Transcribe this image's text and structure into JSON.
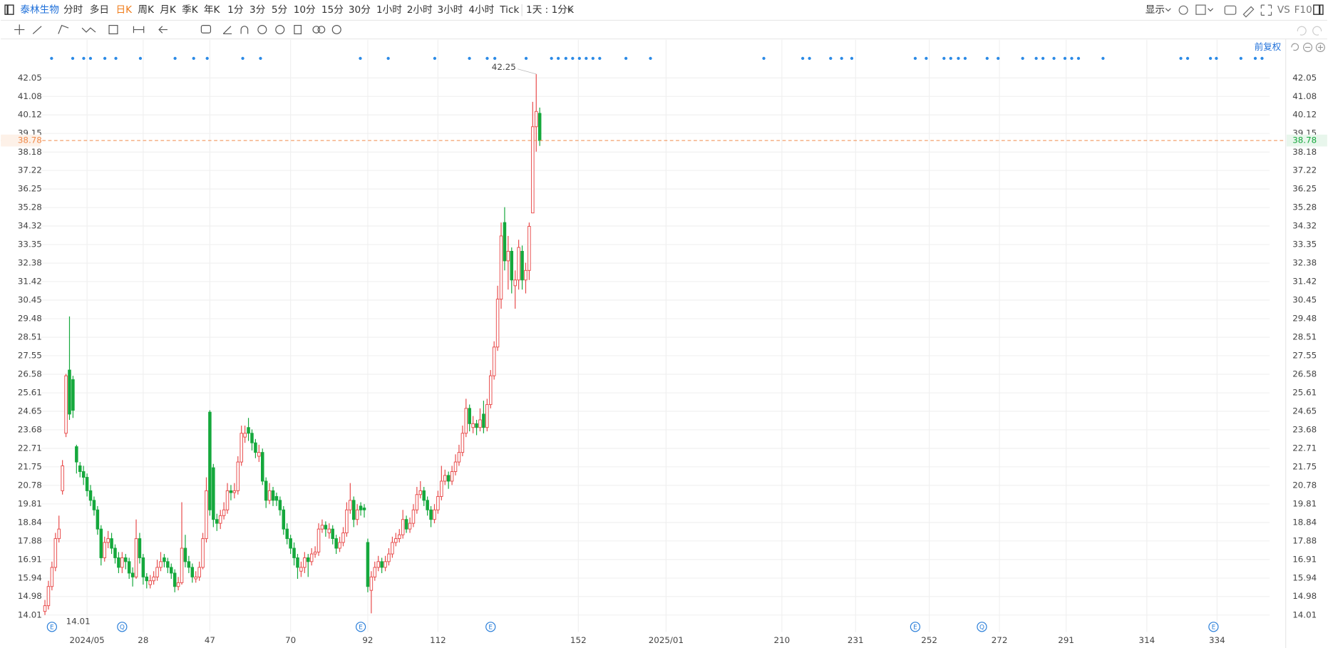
{
  "toolbar": {
    "stock": "泰林生物",
    "periods": [
      "分时",
      "多日",
      "日K",
      "周K",
      "月K",
      "季K",
      "年K",
      "1分",
      "3分",
      "5分",
      "10分",
      "15分",
      "30分",
      "1小时",
      "2小时",
      "3小时",
      "4小时",
      "Tick"
    ],
    "active_period": 2,
    "interval": "1天 : 1分K",
    "display": "显示",
    "vs": "VS",
    "f10": "F10"
  },
  "chart_data": {
    "type": "candlestick",
    "adjust": "前复权",
    "up_color": "#e84a4a",
    "down_color": "#15a83c",
    "last_color": "#f08a4b",
    "xlim": [
      -1,
      349
    ],
    "ylim": [
      13.13,
      44.04
    ],
    "xticks": [
      {
        "value": 12,
        "label": "2024/05"
      },
      28,
      47,
      70,
      92,
      112,
      152,
      {
        "value": 177,
        "label": "2025/01"
      },
      210,
      231,
      252,
      272,
      291,
      314,
      334
    ],
    "yticks": [
      14.01,
      14.98,
      15.94,
      16.91,
      17.88,
      18.84,
      19.81,
      20.78,
      21.75,
      22.71,
      23.68,
      24.65,
      25.61,
      26.58,
      27.55,
      28.51,
      29.48,
      30.45,
      31.42,
      32.38,
      33.35,
      34.32,
      35.28,
      36.25,
      37.22,
      38.18,
      39.15,
      40.12,
      41.08,
      42.05
    ],
    "grid": true,
    "last_price": 38.78,
    "max_label": 42.25,
    "min_label": 14.01,
    "x": [
      0,
      1,
      2,
      3,
      4,
      5,
      6,
      7,
      8,
      9,
      10,
      11,
      12,
      13,
      14,
      15,
      16,
      17,
      18,
      19,
      20,
      21,
      22,
      23,
      24,
      25,
      26,
      27,
      28,
      29,
      30,
      31,
      32,
      33,
      34,
      35,
      36,
      37,
      38,
      39,
      40,
      41,
      42,
      43,
      44,
      45,
      46,
      47,
      48,
      49,
      50,
      51,
      52,
      53,
      54,
      55,
      56,
      57,
      58,
      59,
      60,
      61,
      62,
      63,
      64,
      65,
      66,
      67,
      68,
      69,
      70,
      71,
      72,
      73,
      74,
      75,
      76,
      77,
      78,
      79,
      80,
      81,
      82,
      83,
      84,
      85,
      86,
      87,
      88,
      89,
      90,
      91,
      92,
      93,
      94,
      95,
      96,
      97,
      98,
      99,
      100,
      101,
      102,
      103,
      104,
      105,
      106,
      107,
      108,
      109,
      110,
      111,
      112,
      113,
      114,
      115,
      116,
      117,
      118,
      119,
      120,
      121,
      122,
      123,
      124,
      125,
      126,
      127,
      128,
      129,
      130,
      131,
      132,
      133,
      134,
      135,
      136,
      137,
      138,
      139,
      140,
      141
    ],
    "open": [
      14.2,
      14.5,
      15.5,
      16.5,
      18.0,
      20.5,
      23.5,
      26.8,
      26.3,
      22.8,
      21.8,
      21.5,
      21.2,
      20.5,
      20.0,
      19.5,
      18.5,
      17.0,
      17.8,
      18.0,
      17.5,
      17.0,
      16.5,
      17.0,
      16.8,
      16.2,
      16.0,
      18.0,
      17.0,
      16.0,
      15.6,
      15.8,
      16.0,
      16.5,
      17.0,
      16.8,
      16.5,
      16.2,
      15.5,
      15.7,
      17.5,
      16.8,
      16.5,
      15.9,
      16.0,
      16.5,
      18.0,
      24.6,
      21.7,
      19.0,
      18.8,
      19.2,
      19.5,
      20.5,
      20.4,
      20.5,
      22.0,
      23.3,
      23.8,
      23.5,
      23.0,
      22.3,
      22.5,
      21.0,
      20.0,
      20.5,
      20.2,
      20.0,
      19.5,
      18.5,
      18.0,
      17.5,
      17.0,
      16.3,
      16.5,
      17.0,
      16.8,
      17.2,
      17.3,
      18.5,
      18.7,
      18.3,
      18.5,
      18.0,
      17.5,
      17.8,
      18.3,
      19.5,
      20.0,
      19.0,
      19.7,
      19.6,
      17.8,
      15.3,
      16.0,
      16.5,
      16.8,
      16.5,
      16.8,
      17.2,
      17.8,
      18.0,
      18.2,
      19.0,
      18.5,
      18.8,
      19.5,
      20.3,
      20.5,
      20.0,
      19.5,
      19.0,
      19.5,
      20.2,
      21.0,
      21.3,
      21.0,
      21.5,
      22.0,
      22.5,
      23.5,
      24.8,
      23.8,
      24.0,
      23.8,
      24.5,
      23.8,
      25.0,
      26.5,
      28.0,
      30.5,
      34.5,
      32.5,
      33.0,
      31.2,
      31.5,
      33.0,
      31.5,
      32.0,
      35.0,
      39.5,
      40.2
    ],
    "high": [
      14.8,
      15.8,
      16.8,
      18.3,
      19.2,
      22.1,
      26.6,
      29.6,
      26.5,
      22.9,
      22.0,
      21.8,
      21.4,
      20.8,
      20.2,
      19.7,
      18.7,
      18.1,
      18.4,
      18.3,
      17.7,
      17.3,
      17.3,
      17.2,
      17.0,
      16.5,
      19.0,
      18.3,
      17.2,
      16.2,
      16.1,
      16.3,
      16.9,
      17.3,
      17.2,
      17.0,
      16.7,
      16.4,
      16.0,
      19.9,
      18.2,
      17.1,
      16.7,
      16.3,
      16.8,
      18.3,
      21.2,
      24.7,
      21.9,
      19.3,
      19.5,
      19.9,
      20.9,
      20.8,
      20.9,
      22.3,
      23.9,
      23.9,
      24.3,
      23.7,
      23.2,
      22.9,
      22.7,
      21.2,
      20.9,
      20.7,
      20.4,
      20.2,
      19.7,
      18.8,
      18.2,
      17.8,
      17.2,
      16.8,
      17.3,
      17.2,
      17.5,
      17.6,
      18.8,
      19.0,
      18.9,
      18.8,
      18.7,
      18.2,
      18.1,
      18.6,
      19.9,
      20.9,
      20.2,
      19.8,
      19.9,
      19.8,
      18.0,
      16.3,
      16.8,
      17.1,
      17.0,
      17.1,
      17.5,
      18.1,
      18.3,
      18.5,
      19.5,
      19.2,
      19.1,
      19.8,
      20.7,
      21.0,
      20.7,
      20.2,
      19.7,
      19.8,
      20.5,
      21.8,
      21.6,
      21.5,
      21.8,
      22.4,
      22.9,
      23.9,
      25.3,
      25.0,
      24.4,
      24.2,
      24.8,
      25.2,
      25.3,
      26.8,
      28.3,
      31.2,
      34.5,
      35.3,
      33.8,
      33.2,
      32.0,
      33.6,
      33.3,
      32.4,
      34.5,
      40.8,
      42.25,
      40.5
    ],
    "low": [
      14.01,
      14.3,
      15.3,
      16.3,
      17.8,
      20.3,
      23.3,
      24.2,
      24.3,
      21.4,
      21.2,
      20.8,
      20.2,
      19.7,
      19.2,
      18.2,
      16.6,
      16.8,
      17.5,
      17.2,
      16.7,
      16.2,
      16.2,
      16.4,
      15.9,
      15.5,
      15.9,
      16.7,
      15.6,
      15.4,
      15.4,
      15.6,
      15.8,
      16.3,
      16.5,
      16.2,
      15.9,
      15.2,
      15.3,
      15.6,
      16.5,
      16.2,
      15.7,
      15.7,
      15.8,
      16.4,
      17.8,
      19.2,
      18.6,
      18.4,
      18.5,
      19.0,
      19.3,
      20.0,
      20.1,
      20.3,
      21.8,
      23.0,
      23.1,
      22.6,
      22.2,
      22.0,
      20.8,
      19.6,
      19.8,
      19.7,
      19.7,
      19.2,
      18.2,
      17.7,
      17.2,
      16.6,
      15.9,
      16.0,
      16.2,
      16.0,
      16.6,
      17.0,
      17.1,
      18.3,
      18.1,
      18.0,
      17.7,
      17.2,
      17.3,
      17.6,
      18.1,
      19.3,
      18.6,
      18.7,
      19.2,
      19.1,
      15.2,
      14.1,
      15.8,
      16.3,
      16.2,
      16.3,
      16.6,
      17.0,
      17.6,
      17.8,
      18.0,
      18.3,
      18.3,
      18.6,
      19.3,
      20.1,
      19.7,
      19.2,
      18.6,
      18.8,
      19.3,
      20.0,
      20.8,
      20.6,
      20.8,
      21.3,
      21.8,
      22.3,
      23.3,
      23.6,
      23.5,
      23.4,
      23.6,
      23.5,
      23.6,
      24.8,
      26.3,
      27.8,
      30.0,
      32.0,
      31.0,
      30.8,
      30.0,
      31.0,
      31.0,
      30.8,
      31.5,
      35.0,
      38.2,
      38.5
    ],
    "close": [
      14.5,
      15.5,
      16.5,
      18.0,
      18.5,
      21.8,
      26.5,
      24.5,
      24.7,
      22.0,
      21.5,
      21.2,
      20.5,
      20.0,
      19.5,
      18.5,
      17.0,
      17.8,
      18.0,
      17.5,
      17.0,
      16.5,
      17.0,
      16.8,
      16.2,
      16.0,
      18.0,
      17.0,
      16.0,
      15.8,
      15.8,
      16.0,
      16.5,
      16.8,
      16.8,
      16.5,
      16.2,
      15.5,
      15.7,
      17.5,
      16.8,
      16.5,
      16.0,
      16.0,
      16.5,
      18.0,
      20.5,
      19.5,
      19.0,
      18.8,
      19.2,
      19.5,
      20.5,
      20.4,
      20.5,
      22.0,
      23.5,
      23.5,
      23.5,
      23.0,
      22.5,
      22.5,
      21.0,
      20.0,
      20.5,
      20.0,
      20.0,
      19.5,
      18.5,
      18.0,
      17.5,
      17.0,
      16.5,
      16.5,
      17.0,
      16.8,
      17.2,
      17.3,
      18.5,
      18.7,
      18.5,
      18.5,
      18.0,
      17.5,
      17.8,
      18.3,
      19.5,
      20.0,
      19.0,
      19.5,
      19.5,
      19.5,
      15.5,
      16.0,
      16.5,
      16.8,
      16.5,
      16.8,
      17.2,
      17.8,
      18.0,
      18.2,
      19.0,
      18.5,
      18.8,
      19.5,
      20.3,
      20.5,
      20.0,
      19.5,
      19.0,
      19.5,
      20.2,
      21.0,
      21.3,
      21.0,
      21.5,
      22.0,
      22.5,
      23.5,
      24.8,
      24.0,
      24.0,
      23.8,
      24.2,
      23.8,
      25.0,
      26.5,
      28.0,
      30.5,
      33.8,
      32.5,
      33.0,
      31.5,
      31.5,
      33.2,
      31.5,
      32.0,
      34.3,
      39.5,
      40.3,
      38.78
    ],
    "event_markers": [
      {
        "x": 2,
        "label": "E"
      },
      {
        "x": 22,
        "label": "Q"
      },
      {
        "x": 90,
        "label": "E"
      },
      {
        "x": 127,
        "label": "E"
      },
      {
        "x": 248,
        "label": "E"
      },
      {
        "x": 267,
        "label": "Q"
      },
      {
        "x": 333,
        "label": "E"
      }
    ]
  }
}
